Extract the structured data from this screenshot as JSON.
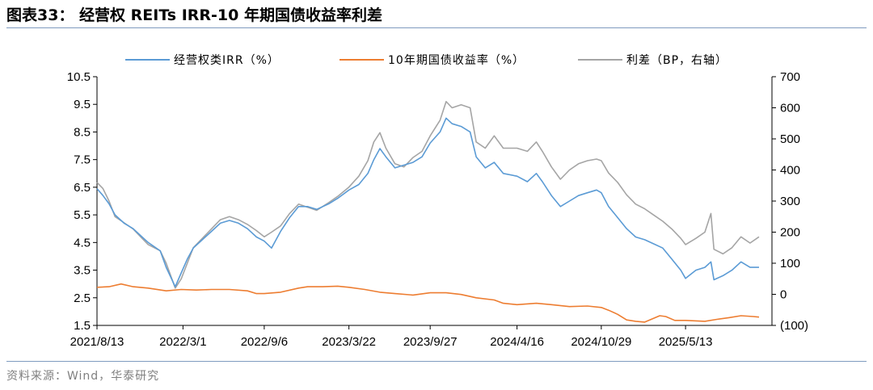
{
  "header": {
    "title": "图表33：  经营权 REITs IRR-10 年期国债收益率利差"
  },
  "footer": {
    "source": "资料来源：Wind，华泰研究"
  },
  "colors": {
    "irr": "#5b9bd5",
    "bond": "#ed7d31",
    "spread": "#a5a5a5",
    "rule": "#7f9bbf"
  },
  "chart_data": {
    "type": "line",
    "title": "",
    "legend_position": "top",
    "grid": false,
    "x_labels": [
      "2021/8/13",
      "2022/3/1",
      "2022/9/6",
      "2023/3/22",
      "2023/9/27",
      "2024/4/16",
      "2024/10/29",
      "2025/5/13"
    ],
    "x_range": [
      "2021/8/13",
      "2025/11/30"
    ],
    "y_left": {
      "range": [
        1.5,
        10.5
      ],
      "ticks": [
        "1.5",
        "2.5",
        "3.5",
        "4.5",
        "5.5",
        "6.5",
        "7.5",
        "8.5",
        "9.5",
        "10.5"
      ]
    },
    "y_right": {
      "range": [
        -100,
        700
      ],
      "ticks": [
        "(100)",
        "0",
        "100",
        "200",
        "300",
        "400",
        "500",
        "600",
        "700"
      ]
    },
    "series": [
      {
        "name": "经营权类IRR（%）",
        "axis": "left",
        "color": "#5b9bd5",
        "points": [
          [
            "2021/8/13",
            6.45
          ],
          [
            "2021/8/27",
            6.2
          ],
          [
            "2021/9/10",
            5.9
          ],
          [
            "2021/9/24",
            5.5
          ],
          [
            "2021/10/15",
            5.2
          ],
          [
            "2021/11/5",
            5.0
          ],
          [
            "2021/11/26",
            4.7
          ],
          [
            "2021/12/10",
            4.5
          ],
          [
            "2022/1/7",
            4.2
          ],
          [
            "2022/1/21",
            3.6
          ],
          [
            "2022/2/11",
            2.9
          ],
          [
            "2022/2/25",
            3.4
          ],
          [
            "2022/3/11",
            3.9
          ],
          [
            "2022/3/25",
            4.3
          ],
          [
            "2022/4/15",
            4.6
          ],
          [
            "2022/5/6",
            4.9
          ],
          [
            "2022/5/27",
            5.2
          ],
          [
            "2022/6/17",
            5.3
          ],
          [
            "2022/7/8",
            5.2
          ],
          [
            "2022/7/29",
            5.0
          ],
          [
            "2022/8/19",
            4.7
          ],
          [
            "2022/9/6",
            4.55
          ],
          [
            "2022/9/23",
            4.3
          ],
          [
            "2022/10/14",
            4.9
          ],
          [
            "2022/11/4",
            5.4
          ],
          [
            "2022/11/25",
            5.8
          ],
          [
            "2022/12/16",
            5.8
          ],
          [
            "2023/1/6",
            5.7
          ],
          [
            "2023/2/3",
            5.9
          ],
          [
            "2023/2/24",
            6.1
          ],
          [
            "2023/3/22",
            6.4
          ],
          [
            "2023/4/14",
            6.6
          ],
          [
            "2023/5/5",
            7.0
          ],
          [
            "2023/5/19",
            7.5
          ],
          [
            "2023/6/2",
            7.9
          ],
          [
            "2023/6/16",
            7.6
          ],
          [
            "2023/7/7",
            7.2
          ],
          [
            "2023/7/28",
            7.3
          ],
          [
            "2023/8/18",
            7.4
          ],
          [
            "2023/9/8",
            7.6
          ],
          [
            "2023/9/27",
            8.1
          ],
          [
            "2023/10/20",
            8.5
          ],
          [
            "2023/11/3",
            9.0
          ],
          [
            "2023/11/17",
            8.8
          ],
          [
            "2023/12/8",
            8.7
          ],
          [
            "2023/12/29",
            8.5
          ],
          [
            "2024/1/12",
            7.6
          ],
          [
            "2024/2/2",
            7.2
          ],
          [
            "2024/2/23",
            7.4
          ],
          [
            "2024/3/15",
            7.0
          ],
          [
            "2024/4/16",
            6.9
          ],
          [
            "2024/5/10",
            6.7
          ],
          [
            "2024/5/31",
            7.0
          ],
          [
            "2024/6/14",
            6.7
          ],
          [
            "2024/7/5",
            6.2
          ],
          [
            "2024/7/26",
            5.8
          ],
          [
            "2024/8/16",
            6.0
          ],
          [
            "2024/9/6",
            6.2
          ],
          [
            "2024/9/27",
            6.3
          ],
          [
            "2024/10/18",
            6.4
          ],
          [
            "2024/10/29",
            6.3
          ],
          [
            "2024/11/15",
            5.8
          ],
          [
            "2024/12/6",
            5.4
          ],
          [
            "2024/12/27",
            5.0
          ],
          [
            "2025/1/17",
            4.7
          ],
          [
            "2025/2/7",
            4.6
          ],
          [
            "2025/2/28",
            4.45
          ],
          [
            "2025/3/21",
            4.3
          ],
          [
            "2025/4/11",
            3.9
          ],
          [
            "2025/5/2",
            3.5
          ],
          [
            "2025/5/13",
            3.2
          ],
          [
            "2025/6/6",
            3.5
          ],
          [
            "2025/6/27",
            3.6
          ],
          [
            "2025/7/11",
            3.8
          ],
          [
            "2025/7/18",
            3.15
          ],
          [
            "2025/8/8",
            3.3
          ],
          [
            "2025/8/29",
            3.5
          ],
          [
            "2025/9/19",
            3.8
          ],
          [
            "2025/10/10",
            3.6
          ],
          [
            "2025/10/31",
            3.6
          ]
        ]
      },
      {
        "name": "10年期国债收益率（%）",
        "axis": "left",
        "color": "#ed7d31",
        "points": [
          [
            "2021/8/13",
            2.88
          ],
          [
            "2021/9/10",
            2.9
          ],
          [
            "2021/10/8",
            3.0
          ],
          [
            "2021/11/5",
            2.9
          ],
          [
            "2021/12/10",
            2.85
          ],
          [
            "2022/1/21",
            2.75
          ],
          [
            "2022/2/25",
            2.8
          ],
          [
            "2022/4/1",
            2.78
          ],
          [
            "2022/5/6",
            2.8
          ],
          [
            "2022/6/17",
            2.8
          ],
          [
            "2022/7/29",
            2.75
          ],
          [
            "2022/8/19",
            2.65
          ],
          [
            "2022/9/6",
            2.65
          ],
          [
            "2022/10/14",
            2.7
          ],
          [
            "2022/11/25",
            2.85
          ],
          [
            "2022/12/16",
            2.9
          ],
          [
            "2023/1/20",
            2.9
          ],
          [
            "2023/2/24",
            2.92
          ],
          [
            "2023/3/22",
            2.88
          ],
          [
            "2023/4/28",
            2.8
          ],
          [
            "2023/6/2",
            2.7
          ],
          [
            "2023/7/7",
            2.65
          ],
          [
            "2023/8/18",
            2.6
          ],
          [
            "2023/9/27",
            2.68
          ],
          [
            "2023/11/3",
            2.68
          ],
          [
            "2023/12/8",
            2.62
          ],
          [
            "2024/1/12",
            2.5
          ],
          [
            "2024/2/23",
            2.42
          ],
          [
            "2024/3/15",
            2.3
          ],
          [
            "2024/4/16",
            2.25
          ],
          [
            "2024/5/31",
            2.3
          ],
          [
            "2024/7/5",
            2.25
          ],
          [
            "2024/8/16",
            2.18
          ],
          [
            "2024/9/27",
            2.2
          ],
          [
            "2024/10/29",
            2.15
          ],
          [
            "2024/11/15",
            2.05
          ],
          [
            "2024/12/6",
            1.9
          ],
          [
            "2024/12/27",
            1.7
          ],
          [
            "2025/1/17",
            1.65
          ],
          [
            "2025/2/7",
            1.62
          ],
          [
            "2025/3/14",
            1.85
          ],
          [
            "2025/3/28",
            1.82
          ],
          [
            "2025/4/18",
            1.68
          ],
          [
            "2025/5/13",
            1.68
          ],
          [
            "2025/6/27",
            1.65
          ],
          [
            "2025/7/25",
            1.72
          ],
          [
            "2025/8/22",
            1.78
          ],
          [
            "2025/9/19",
            1.85
          ],
          [
            "2025/10/17",
            1.82
          ],
          [
            "2025/10/31",
            1.8
          ]
        ]
      },
      {
        "name": "利差（BP，右轴）",
        "axis": "right",
        "color": "#a5a5a5",
        "points": [
          [
            "2021/8/13",
            360
          ],
          [
            "2021/8/27",
            340
          ],
          [
            "2021/9/10",
            300
          ],
          [
            "2021/9/24",
            250
          ],
          [
            "2021/10/15",
            230
          ],
          [
            "2021/11/5",
            210
          ],
          [
            "2021/11/26",
            180
          ],
          [
            "2021/12/10",
            160
          ],
          [
            "2022/1/7",
            140
          ],
          [
            "2022/1/21",
            100
          ],
          [
            "2022/2/11",
            20
          ],
          [
            "2022/2/25",
            50
          ],
          [
            "2022/3/11",
            100
          ],
          [
            "2022/3/25",
            150
          ],
          [
            "2022/4/15",
            180
          ],
          [
            "2022/5/6",
            210
          ],
          [
            "2022/5/27",
            240
          ],
          [
            "2022/6/17",
            250
          ],
          [
            "2022/7/8",
            240
          ],
          [
            "2022/7/29",
            225
          ],
          [
            "2022/8/19",
            205
          ],
          [
            "2022/9/6",
            185
          ],
          [
            "2022/9/23",
            200
          ],
          [
            "2022/10/14",
            220
          ],
          [
            "2022/11/4",
            260
          ],
          [
            "2022/11/25",
            290
          ],
          [
            "2022/12/16",
            280
          ],
          [
            "2023/1/6",
            270
          ],
          [
            "2023/2/3",
            295
          ],
          [
            "2023/2/24",
            315
          ],
          [
            "2023/3/22",
            345
          ],
          [
            "2023/4/14",
            380
          ],
          [
            "2023/5/5",
            430
          ],
          [
            "2023/5/19",
            490
          ],
          [
            "2023/6/2",
            520
          ],
          [
            "2023/6/16",
            470
          ],
          [
            "2023/7/7",
            420
          ],
          [
            "2023/7/28",
            410
          ],
          [
            "2023/8/18",
            440
          ],
          [
            "2023/9/8",
            460
          ],
          [
            "2023/9/27",
            510
          ],
          [
            "2023/10/20",
            560
          ],
          [
            "2023/11/3",
            620
          ],
          [
            "2023/11/17",
            600
          ],
          [
            "2023/12/8",
            610
          ],
          [
            "2023/12/29",
            600
          ],
          [
            "2024/1/12",
            490
          ],
          [
            "2024/2/2",
            470
          ],
          [
            "2024/2/23",
            510
          ],
          [
            "2024/3/15",
            470
          ],
          [
            "2024/4/16",
            470
          ],
          [
            "2024/5/10",
            460
          ],
          [
            "2024/5/31",
            490
          ],
          [
            "2024/6/14",
            460
          ],
          [
            "2024/7/5",
            410
          ],
          [
            "2024/7/26",
            370
          ],
          [
            "2024/8/16",
            400
          ],
          [
            "2024/9/6",
            420
          ],
          [
            "2024/9/27",
            430
          ],
          [
            "2024/10/18",
            435
          ],
          [
            "2024/10/29",
            430
          ],
          [
            "2024/11/15",
            390
          ],
          [
            "2024/12/6",
            360
          ],
          [
            "2024/12/27",
            320
          ],
          [
            "2025/1/17",
            290
          ],
          [
            "2025/2/7",
            275
          ],
          [
            "2025/2/28",
            255
          ],
          [
            "2025/3/21",
            235
          ],
          [
            "2025/4/11",
            210
          ],
          [
            "2025/5/2",
            180
          ],
          [
            "2025/5/13",
            160
          ],
          [
            "2025/6/6",
            180
          ],
          [
            "2025/6/27",
            200
          ],
          [
            "2025/7/11",
            260
          ],
          [
            "2025/7/18",
            145
          ],
          [
            "2025/8/8",
            130
          ],
          [
            "2025/8/29",
            150
          ],
          [
            "2025/9/19",
            185
          ],
          [
            "2025/10/10",
            165
          ],
          [
            "2025/10/31",
            185
          ]
        ]
      }
    ]
  }
}
